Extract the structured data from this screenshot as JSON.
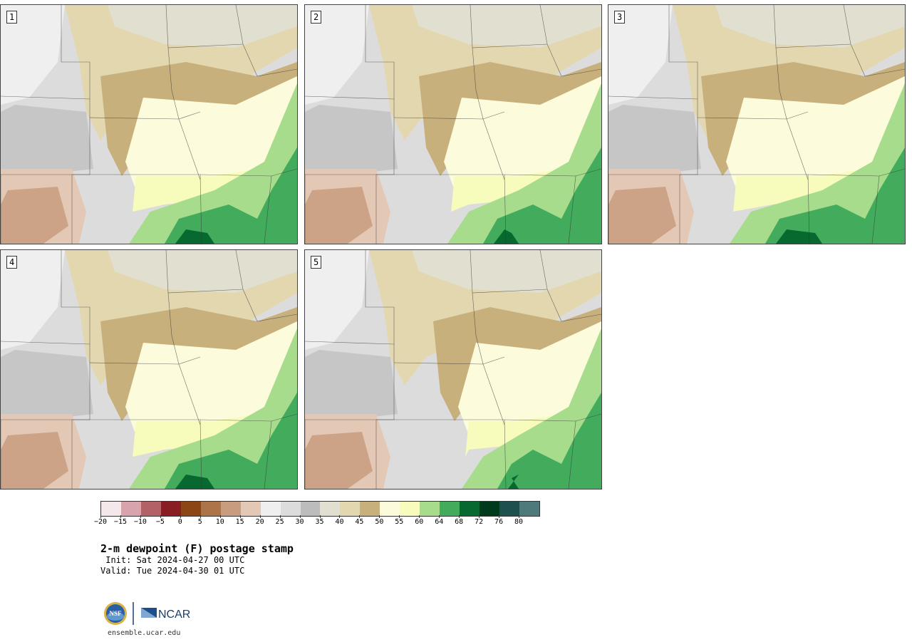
{
  "panels": [
    {
      "label": "1"
    },
    {
      "label": "2"
    },
    {
      "label": "3"
    },
    {
      "label": "4"
    },
    {
      "label": "5"
    }
  ],
  "legend": {
    "colors": [
      "#f4e8ea",
      "#d8a3aa",
      "#b26166",
      "#8a1c24",
      "#8c4515",
      "#ad7449",
      "#c89c7e",
      "#e4c8b6",
      "#efefef",
      "#dcdcdc",
      "#bcbcbc",
      "#e0dfd0",
      "#e3d7b0",
      "#c8b07c",
      "#fcfbdc",
      "#f7fbbc",
      "#a7dc8c",
      "#43ab5c",
      "#07692f",
      "#003a1d",
      "#1e5050",
      "#4e7a7c"
    ],
    "ticks": [
      "−20",
      "−15",
      "−10",
      "−5",
      "0",
      "5",
      "10",
      "15",
      "20",
      "25",
      "30",
      "35",
      "40",
      "45",
      "50",
      "55",
      "60",
      "64",
      "68",
      "72",
      "76",
      "80"
    ]
  },
  "title": "2-m dewpoint (F) postage stamp",
  "init": " Init: Sat 2024-04-27 00 UTC",
  "valid": "Valid: Tue 2024-04-30 01 UTC",
  "logo": {
    "nsf": "NSF",
    "ncar": "NCAR"
  },
  "site": "ensemble.ucar.edu"
}
